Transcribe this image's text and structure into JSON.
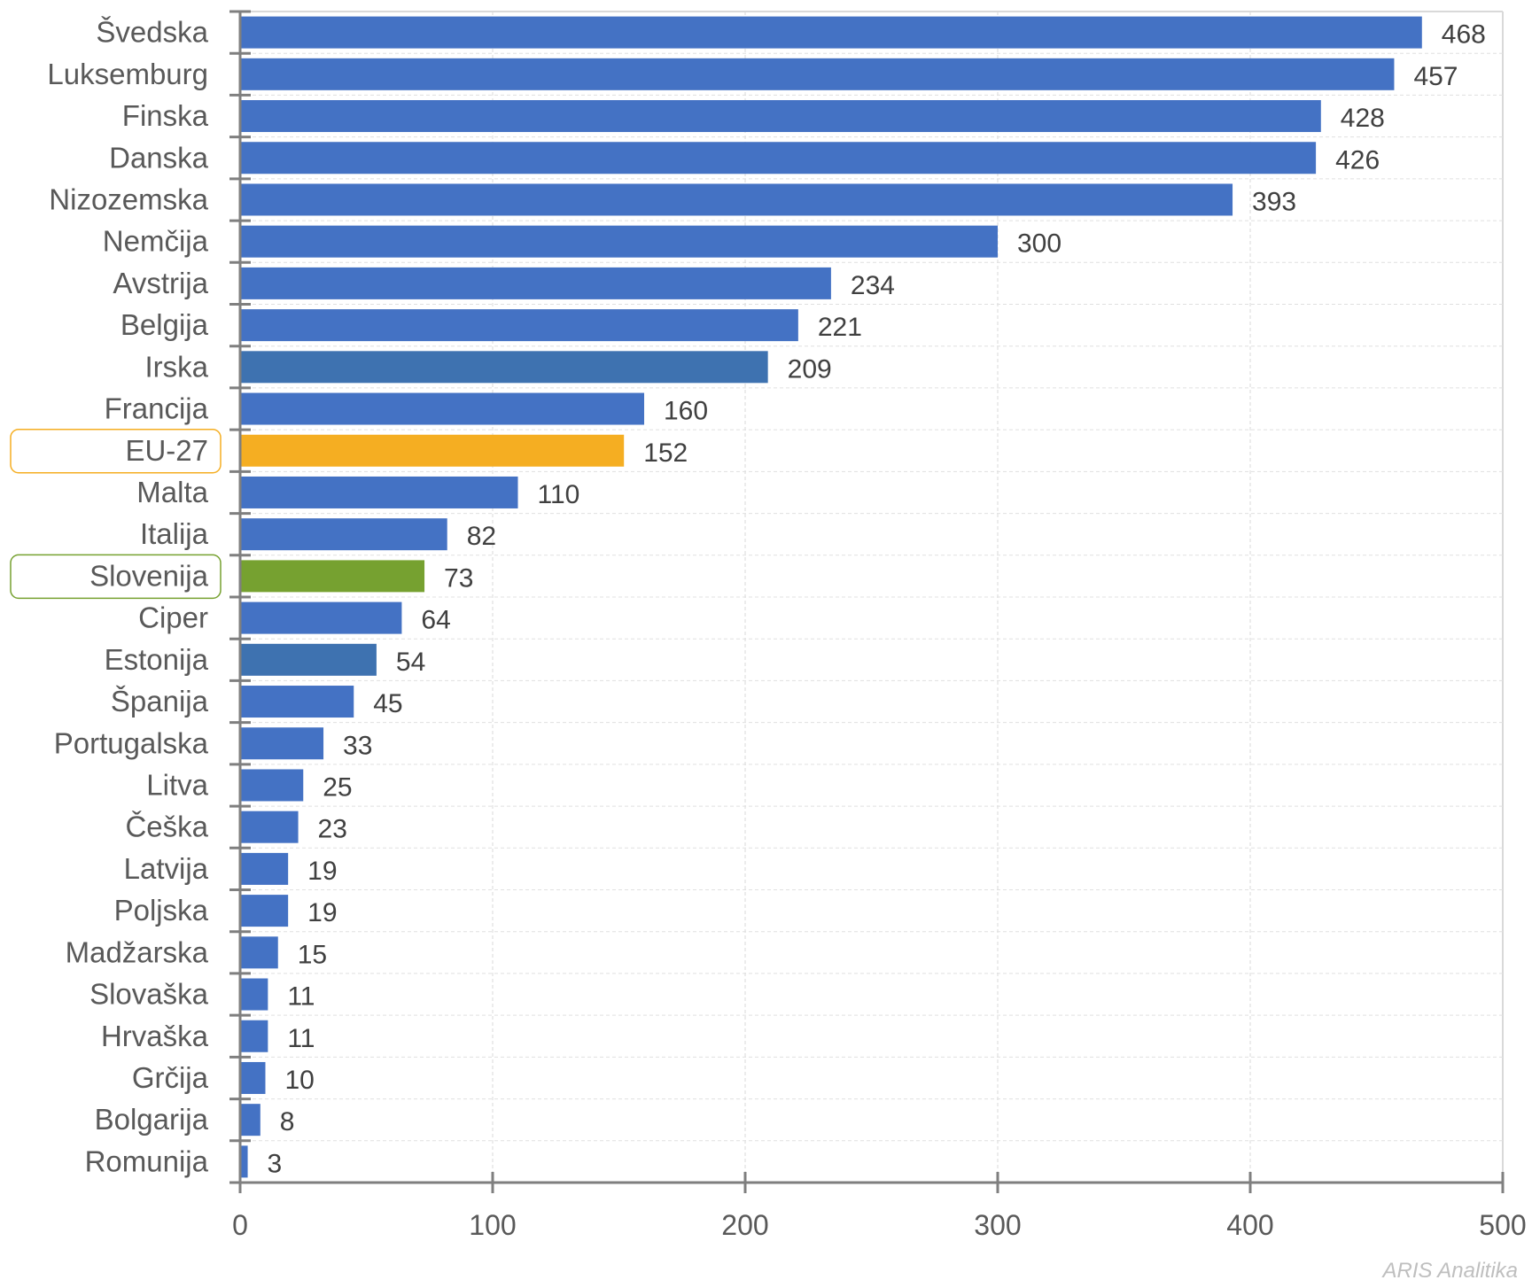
{
  "chart_data": {
    "type": "bar",
    "orientation": "horizontal",
    "title": "",
    "xlabel": "",
    "ylabel": "",
    "xlim": [
      0,
      500
    ],
    "xticks": [
      0,
      100,
      200,
      300,
      400,
      500
    ],
    "grid": true,
    "categories": [
      "Švedska",
      "Luksemburg",
      "Finska",
      "Danska",
      "Nizozemska",
      "Nemčija",
      "Avstrija",
      "Belgija",
      "Irska",
      "Francija",
      "EU-27",
      "Malta",
      "Italija",
      "Slovenija",
      "Ciper",
      "Estonija",
      "Španija",
      "Portugalska",
      "Litva",
      "Češka",
      "Latvija",
      "Poljska",
      "Madžarska",
      "Slovaška",
      "Hrvaška",
      "Grčija",
      "Bolgarija",
      "Romunija"
    ],
    "values": [
      468,
      457,
      428,
      426,
      393,
      300,
      234,
      221,
      209,
      160,
      152,
      110,
      82,
      73,
      64,
      54,
      45,
      33,
      25,
      23,
      19,
      19,
      15,
      11,
      11,
      10,
      8,
      3
    ],
    "highlighted": {
      "EU-27": "#f5ae22",
      "Slovenija": "#76a130"
    },
    "alt_color_categories": [
      "Irska",
      "Estonija"
    ],
    "colors": {
      "default": "#4472c4",
      "alt": "#3e72b0",
      "eu": "#f5ae22",
      "slovenia": "#76a130"
    }
  },
  "watermark": "ARIS Analitika"
}
